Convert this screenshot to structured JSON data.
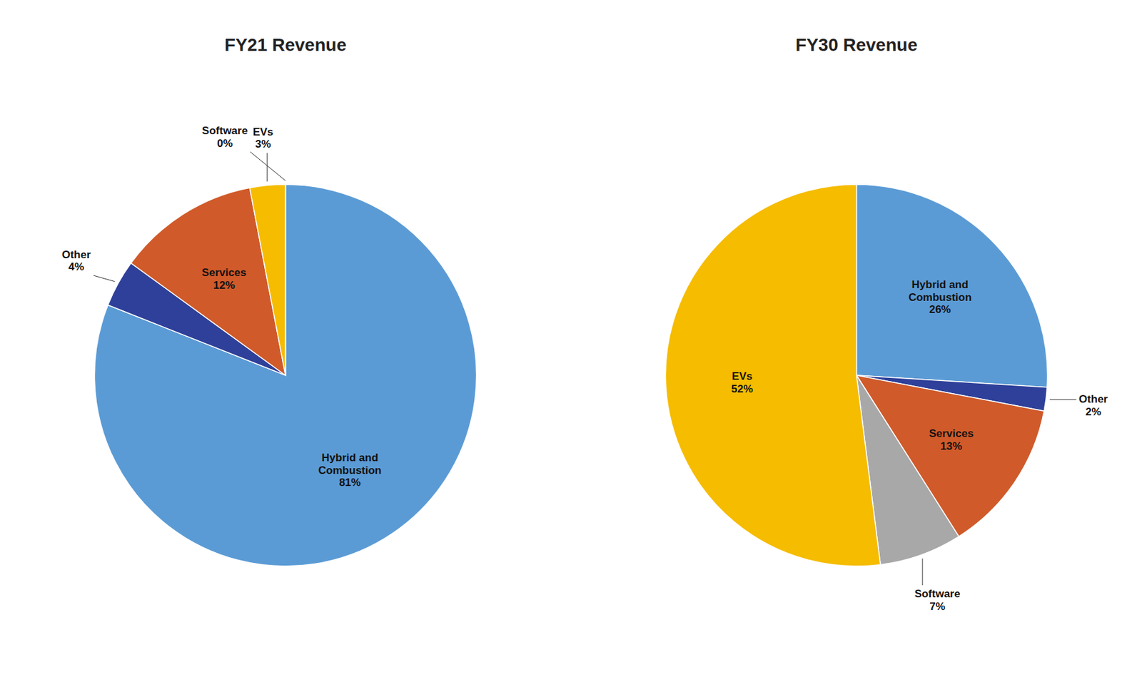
{
  "chart_data": [
    {
      "type": "pie",
      "title": "FY21 Revenue",
      "categories": [
        "Hybrid and\nCombustion\n81%",
        "Other\n4%",
        "Services\n12%",
        "EVs\n3%",
        "Software\n0%"
      ],
      "values": [
        81,
        4,
        12,
        3,
        0
      ],
      "colors": [
        "#5B9BD5",
        "#2E4099",
        "#D05A2A",
        "#F5BC00",
        "#5B9BD5"
      ]
    },
    {
      "type": "pie",
      "title": "FY30 Revenue",
      "categories": [
        "Hybrid and\nCombustion\n26%",
        "Other\n2%",
        "Services\n13%",
        "Software\n7%",
        "EVs\n52%"
      ],
      "values": [
        26,
        2,
        13,
        7,
        52
      ],
      "colors": [
        "#5B9BD5",
        "#2E4099",
        "#D05A2A",
        "#A8A8A8",
        "#F5BC00"
      ]
    }
  ]
}
